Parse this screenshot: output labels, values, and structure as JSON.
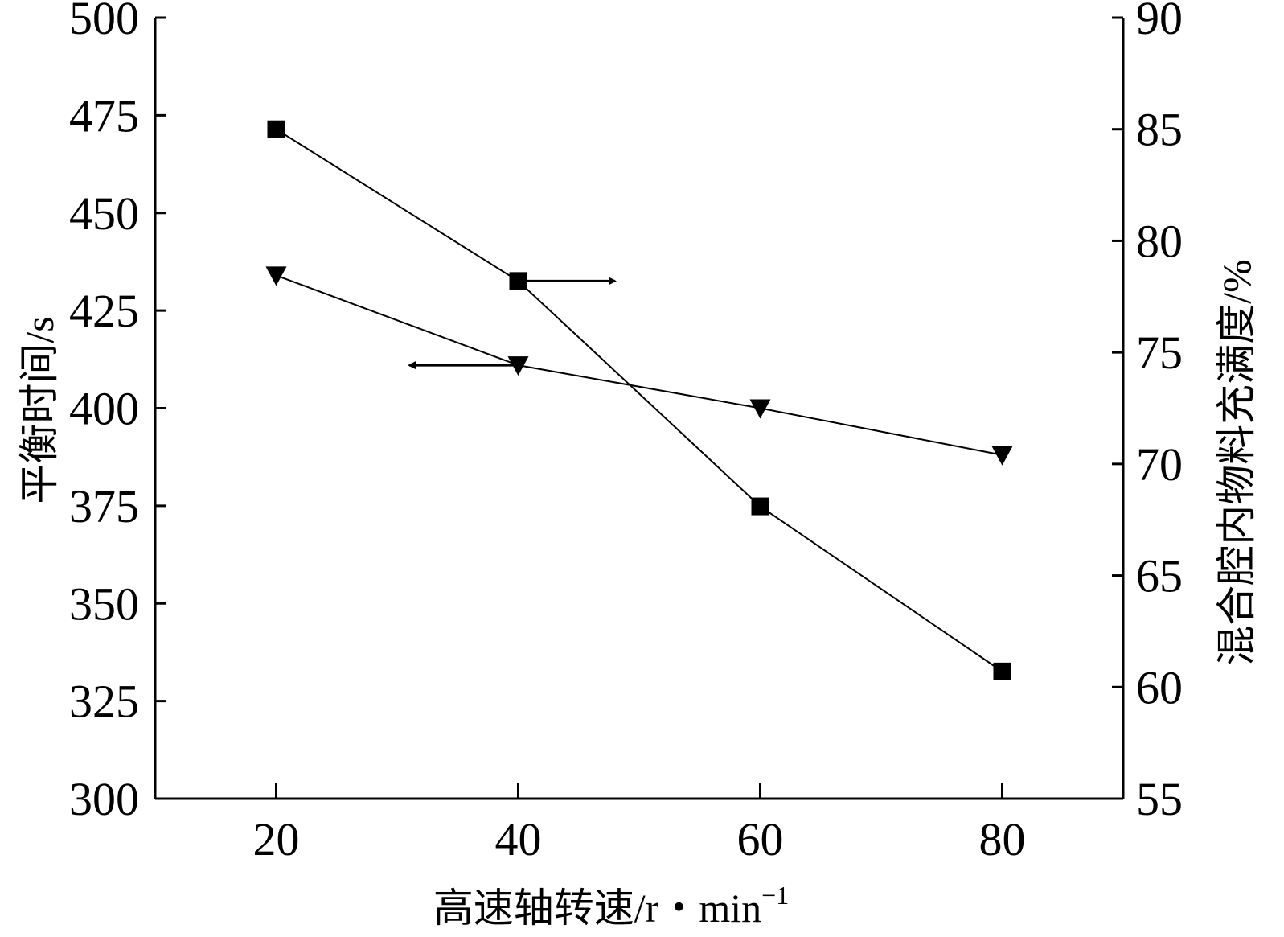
{
  "chart_data": {
    "type": "line",
    "xlabel": "高速轴转速/r・min",
    "xlabel_superscript": "−1",
    "ylabel_left": "平衡时间/s",
    "ylabel_right": "混合腔内物料充满度/%",
    "x_ticks": [
      "20",
      "40",
      "60",
      "80"
    ],
    "y_left_ticks": [
      "300",
      "325",
      "350",
      "375",
      "400",
      "425",
      "450",
      "475",
      "500"
    ],
    "y_right_ticks": [
      "55",
      "60",
      "65",
      "70",
      "75",
      "80",
      "85",
      "90"
    ],
    "xlim": [
      10,
      90
    ],
    "ylim_left": [
      300,
      500
    ],
    "ylim_right": [
      55,
      90
    ],
    "grid": false,
    "x": [
      20,
      40,
      60,
      80
    ],
    "series": [
      {
        "marker": "triangle-down",
        "axis": "left",
        "values": [
          434,
          411,
          400,
          388
        ]
      },
      {
        "marker": "square",
        "axis": "right",
        "values": [
          85.0,
          78.2,
          68.1,
          60.7
        ]
      }
    ],
    "annotations": [
      {
        "type": "arrow",
        "direction": "left",
        "points_to_axis": "left",
        "from": [
          40,
          411
        ],
        "to": [
          31,
          411
        ]
      },
      {
        "type": "arrow",
        "direction": "right",
        "points_to_axis": "right",
        "from": [
          40,
          78.2
        ],
        "to": [
          48,
          78.2
        ]
      }
    ]
  }
}
